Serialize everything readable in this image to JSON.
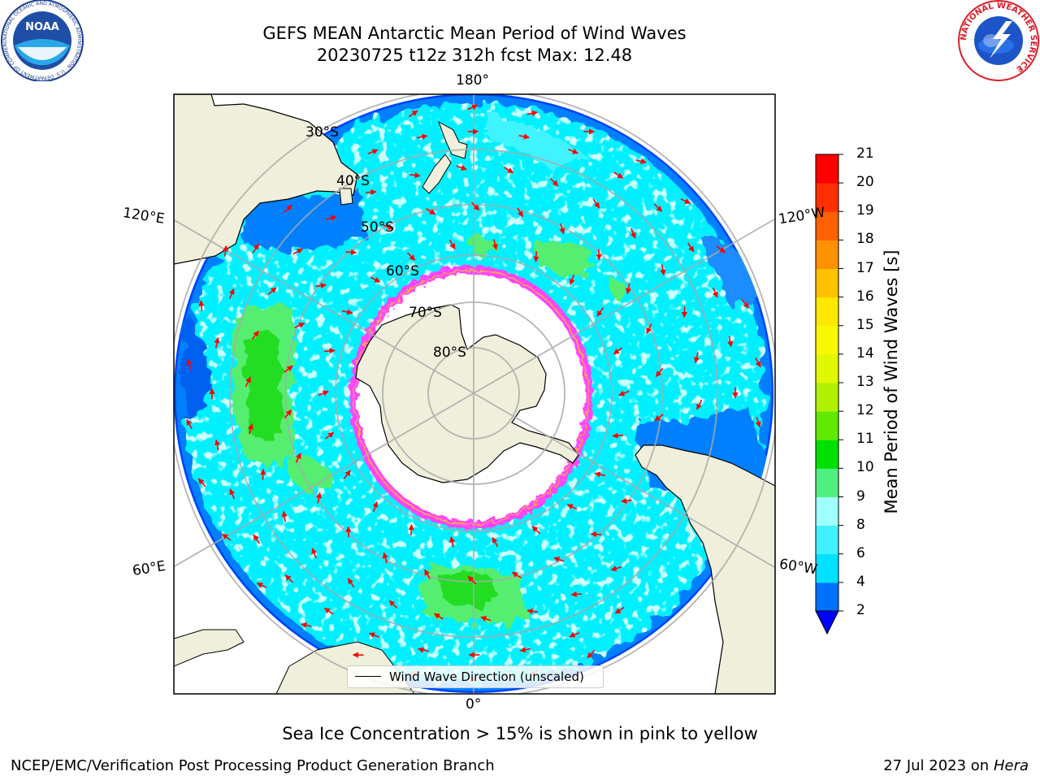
{
  "header": {
    "title_line1": "GEFS MEAN Antarctic Mean Period of Wind Waves",
    "title_line2": "20230725 t12z 312h fcst   Max: 12.48"
  },
  "logos": {
    "noara": "NOAA",
    "noaa_ring": "NATIONAL OCEANIC AND ATMOSPHERIC ADMINISTRATION · U.S. DEPARTMENT OF COMMERCE",
    "nws_ring": "NATIONAL WEATHER SERVICE"
  },
  "map": {
    "lon_labels": {
      "top": "180°",
      "bottom": "0°",
      "upper_left": "120°E",
      "upper_right": "120°W",
      "lower_left": "60°E",
      "lower_right": "60°W"
    },
    "lat_labels": [
      "30°S",
      "40°S",
      "50°S",
      "60°S",
      "70°S",
      "80°S"
    ],
    "legend_label": "Wind Wave Direction (unscaled)",
    "arrow_color": "#ff0000",
    "ice_color": "#ff44ff"
  },
  "colorbar": {
    "label": "Mean Period of Wind Waves [s]",
    "ticks": [
      "2",
      "4",
      "6",
      "8",
      "9",
      "10",
      "11",
      "12",
      "13",
      "14",
      "15",
      "16",
      "17",
      "18",
      "19",
      "20",
      "21"
    ],
    "colors": [
      "#0070ff",
      "#00e0ff",
      "#40f0ff",
      "#a0ffff",
      "#50f080",
      "#00e000",
      "#60e800",
      "#b0f000",
      "#e0f800",
      "#f8f800",
      "#ffe800",
      "#ffc000",
      "#ff9000",
      "#ff6000",
      "#ff3000",
      "#ff0000"
    ],
    "extend_color": "#0000ff"
  },
  "footer": {
    "note": "Sea Ice Concentration > 15% is shown in pink to yellow",
    "credit": "NCEP/EMC/Verification Post Processing Product Generation Branch",
    "date": "27 Jul 2023 on ",
    "machine": "Hera"
  }
}
